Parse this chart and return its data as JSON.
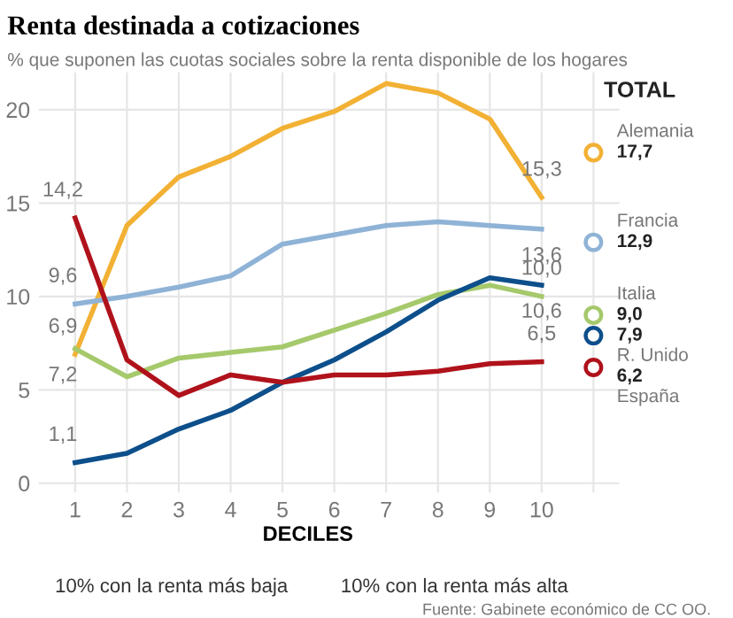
{
  "chart_data": {
    "type": "line",
    "title": "Renta destinada a cotizaciones",
    "subtitle": "% que suponen las cuotas sociales sobre la renta disponible de los hogares",
    "xlabel": "DECILES",
    "categories": [
      "1",
      "2",
      "3",
      "4",
      "5",
      "6",
      "7",
      "8",
      "9",
      "10",
      null
    ],
    "legend_title": "TOTAL",
    "series": [
      {
        "color": "#f2b134",
        "values": [
          6.9,
          13.8,
          16.4,
          17.5,
          19.0,
          19.9,
          21.4,
          20.9,
          19.5,
          15.3,
          null
        ],
        "value_labels": [
          "6,9",
          null,
          null,
          null,
          null,
          null,
          null,
          null,
          null,
          "15,3",
          null
        ]
      },
      {
        "color": "#8fb3d6",
        "values": [
          9.6,
          10.0,
          10.5,
          11.1,
          12.8,
          13.3,
          13.8,
          14.0,
          13.8,
          13.6,
          null
        ],
        "value_labels": [
          "9,6",
          null,
          null,
          null,
          null,
          null,
          null,
          null,
          null,
          "13,6",
          null
        ]
      },
      {
        "color": "#a5c96b",
        "values": [
          7.2,
          5.7,
          6.7,
          7.0,
          7.3,
          8.2,
          9.1,
          10.1,
          10.6,
          10.0,
          null
        ],
        "value_labels": [
          "7,2",
          null,
          null,
          null,
          null,
          null,
          null,
          null,
          null,
          "10,0",
          null
        ]
      },
      {
        "color": "#0d4f8b",
        "values": [
          1.1,
          1.6,
          2.9,
          3.9,
          5.4,
          6.6,
          8.1,
          9.8,
          11.0,
          10.6,
          null
        ],
        "value_labels": [
          "1,1",
          null,
          null,
          null,
          null,
          null,
          null,
          null,
          null,
          "10,6",
          null
        ]
      },
      {
        "color": "#b0121b",
        "values": [
          14.2,
          6.6,
          4.7,
          5.8,
          5.4,
          5.8,
          5.8,
          6.0,
          6.4,
          6.5,
          null
        ],
        "value_labels": [
          "14,2",
          null,
          null,
          null,
          null,
          null,
          null,
          null,
          null,
          "6,5",
          null
        ]
      },
      {
        "type": "scatter",
        "name": "Alemania",
        "color": "#f2b134",
        "values": [
          null,
          null,
          null,
          null,
          null,
          null,
          null,
          null,
          null,
          null,
          17.7
        ],
        "value_labels": [
          null,
          null,
          null,
          null,
          null,
          null,
          null,
          null,
          null,
          null,
          "17,7"
        ]
      },
      {
        "type": "scatter",
        "name": "Francia",
        "color": "#8fb3d6",
        "values": [
          null,
          null,
          null,
          null,
          null,
          null,
          null,
          null,
          null,
          null,
          12.9
        ],
        "value_labels": [
          null,
          null,
          null,
          null,
          null,
          null,
          null,
          null,
          null,
          null,
          "12,9"
        ]
      },
      {
        "type": "scatter",
        "name": "Italia",
        "color": "#a5c96b",
        "values": [
          null,
          null,
          null,
          null,
          null,
          null,
          null,
          null,
          null,
          null,
          9.0
        ],
        "value_labels": [
          null,
          null,
          null,
          null,
          null,
          null,
          null,
          null,
          null,
          null,
          "9,0"
        ]
      },
      {
        "type": "scatter",
        "name": "R. Unido",
        "color": "#0d4f8b",
        "values": [
          null,
          null,
          null,
          null,
          null,
          null,
          null,
          null,
          null,
          null,
          7.9
        ],
        "value_labels": [
          null,
          null,
          null,
          null,
          null,
          null,
          null,
          null,
          null,
          null,
          "7,9"
        ]
      },
      {
        "type": "scatter",
        "name": "España",
        "color": "#b0121b",
        "values": [
          null,
          null,
          null,
          null,
          null,
          null,
          null,
          null,
          null,
          null,
          6.2
        ],
        "value_labels": [
          null,
          null,
          null,
          null,
          null,
          null,
          null,
          null,
          null,
          null,
          "6,2"
        ]
      }
    ],
    "ylim": [
      -0.5,
      22
    ],
    "yticks": [
      0,
      5,
      10,
      15,
      20
    ],
    "grid": true,
    "legend": false,
    "annotations": [
      "10% con la renta más baja",
      "10% con la renta más alta",
      "Fuente: Gabinete económico de CC OO."
    ]
  }
}
